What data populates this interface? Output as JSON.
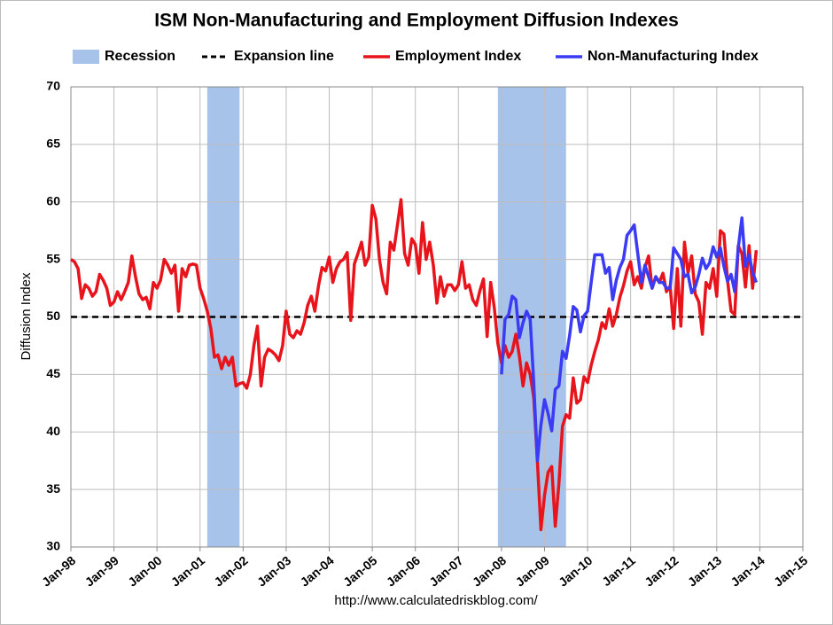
{
  "chart_data": {
    "type": "line",
    "title": "ISM Non-Manufacturing and Employment Diffusion Indexes",
    "ylabel": "Diffusion Index",
    "source": "http://www.calculatedriskblog.com/",
    "recession_label": "Recession",
    "recession_color": "#a8c3ea",
    "recessions": [
      {
        "start": "2001-03",
        "end": "2001-11"
      },
      {
        "start": "2007-12",
        "end": "2009-06"
      }
    ],
    "reference_line": {
      "name": "Expansion line",
      "value": 50,
      "color": "#000000"
    },
    "x": [
      "1998-01",
      "1998-02",
      "1998-03",
      "1998-04",
      "1998-05",
      "1998-06",
      "1998-07",
      "1998-08",
      "1998-09",
      "1998-10",
      "1998-11",
      "1998-12",
      "1999-01",
      "1999-02",
      "1999-03",
      "1999-04",
      "1999-05",
      "1999-06",
      "1999-07",
      "1999-08",
      "1999-09",
      "1999-10",
      "1999-11",
      "1999-12",
      "2000-01",
      "2000-02",
      "2000-03",
      "2000-04",
      "2000-05",
      "2000-06",
      "2000-07",
      "2000-08",
      "2000-09",
      "2000-10",
      "2000-11",
      "2000-12",
      "2001-01",
      "2001-02",
      "2001-03",
      "2001-04",
      "2001-05",
      "2001-06",
      "2001-07",
      "2001-08",
      "2001-09",
      "2001-10",
      "2001-11",
      "2001-12",
      "2002-01",
      "2002-02",
      "2002-03",
      "2002-04",
      "2002-05",
      "2002-06",
      "2002-07",
      "2002-08",
      "2002-09",
      "2002-10",
      "2002-11",
      "2002-12",
      "2003-01",
      "2003-02",
      "2003-03",
      "2003-04",
      "2003-05",
      "2003-06",
      "2003-07",
      "2003-08",
      "2003-09",
      "2003-10",
      "2003-11",
      "2003-12",
      "2004-01",
      "2004-02",
      "2004-03",
      "2004-04",
      "2004-05",
      "2004-06",
      "2004-07",
      "2004-08",
      "2004-09",
      "2004-10",
      "2004-11",
      "2004-12",
      "2005-01",
      "2005-02",
      "2005-03",
      "2005-04",
      "2005-05",
      "2005-06",
      "2005-07",
      "2005-08",
      "2005-09",
      "2005-10",
      "2005-11",
      "2005-12",
      "2006-01",
      "2006-02",
      "2006-03",
      "2006-04",
      "2006-05",
      "2006-06",
      "2006-07",
      "2006-08",
      "2006-09",
      "2006-10",
      "2006-11",
      "2006-12",
      "2007-01",
      "2007-02",
      "2007-03",
      "2007-04",
      "2007-05",
      "2007-06",
      "2007-07",
      "2007-08",
      "2007-09",
      "2007-10",
      "2007-11",
      "2007-12",
      "2008-01",
      "2008-02",
      "2008-03",
      "2008-04",
      "2008-05",
      "2008-06",
      "2008-07",
      "2008-08",
      "2008-09",
      "2008-10",
      "2008-11",
      "2008-12",
      "2009-01",
      "2009-02",
      "2009-03",
      "2009-04",
      "2009-05",
      "2009-06",
      "2009-07",
      "2009-08",
      "2009-09",
      "2009-10",
      "2009-11",
      "2009-12",
      "2010-01",
      "2010-02",
      "2010-03",
      "2010-04",
      "2010-05",
      "2010-06",
      "2010-07",
      "2010-08",
      "2010-09",
      "2010-10",
      "2010-11",
      "2010-12",
      "2011-01",
      "2011-02",
      "2011-03",
      "2011-04",
      "2011-05",
      "2011-06",
      "2011-07",
      "2011-08",
      "2011-09",
      "2011-10",
      "2011-11",
      "2011-12",
      "2012-01",
      "2012-02",
      "2012-03",
      "2012-04",
      "2012-05",
      "2012-06",
      "2012-07",
      "2012-08",
      "2012-09",
      "2012-10",
      "2012-11",
      "2012-12",
      "2013-01",
      "2013-02",
      "2013-03",
      "2013-04",
      "2013-05",
      "2013-06",
      "2013-07",
      "2013-08",
      "2013-09",
      "2013-10",
      "2013-11",
      "2013-12"
    ],
    "series": [
      {
        "name": "Employment Index",
        "color": "#e8141c",
        "values": [
          55,
          54.8,
          54.2,
          51.6,
          52.8,
          52.5,
          51.8,
          52.2,
          53.7,
          53.2,
          52.5,
          51,
          51.3,
          52.2,
          51.5,
          52.2,
          53,
          55.3,
          53.5,
          52,
          51.5,
          51.7,
          50.7,
          53,
          52.5,
          53.2,
          55,
          54.5,
          53.8,
          54.5,
          50.5,
          54.2,
          53.5,
          54.5,
          54.6,
          54.5,
          52.5,
          51.6,
          50.5,
          49,
          46.5,
          46.7,
          45.5,
          46.5,
          45.8,
          46.5,
          44,
          44.2,
          44.3,
          43.8,
          45,
          47.5,
          49.2,
          44,
          46.5,
          47.2,
          47,
          46.7,
          46.2,
          47.5,
          50.5,
          48.5,
          48.2,
          48.8,
          48.5,
          49.5,
          51,
          51.8,
          50.5,
          52.7,
          54.3,
          54,
          55.2,
          53,
          54.2,
          54.8,
          55,
          55.6,
          49.7,
          54.6,
          55.5,
          56.5,
          54.5,
          55.2,
          59.7,
          58.5,
          55,
          53,
          52,
          56.5,
          55.8,
          58,
          60.2,
          55.5,
          54.5,
          56.8,
          56.3,
          53.8,
          58.2,
          55,
          56.5,
          54.5,
          51.2,
          53.5,
          51.8,
          52.8,
          52.8,
          52.3,
          52.8,
          54.8,
          52.5,
          52.8,
          51.5,
          51,
          52.3,
          53.3,
          48.3,
          53,
          50.8,
          47.7,
          46,
          47.5,
          46.5,
          47,
          48.5,
          46.6,
          44,
          46,
          45,
          43,
          37.5,
          31.5,
          34.5,
          36.5,
          37,
          31.8,
          35.5,
          40.5,
          41.5,
          41.2,
          44.7,
          42.5,
          42.8,
          44.8,
          44.3,
          45.8,
          47,
          48,
          49.5,
          49,
          50.7,
          49.2,
          50.2,
          51.7,
          52.7,
          54,
          54.8,
          52.8,
          53.5,
          52.5,
          54.3,
          55.3,
          52.5,
          53.5,
          53,
          53.8,
          52.2,
          52.7,
          49,
          54.2,
          49.2,
          56.5,
          53.8,
          55.3,
          52,
          51.3,
          48.5,
          53,
          52.5,
          54.2,
          51.8,
          57.5,
          57.2,
          53.2,
          50.5,
          50.2,
          56.2,
          55.5,
          52.6,
          56.2,
          52.5,
          55.8
        ]
      },
      {
        "name": "Non-Manufacturing Index",
        "color": "#3b3bf5",
        "values": [
          null,
          null,
          null,
          null,
          null,
          null,
          null,
          null,
          null,
          null,
          null,
          null,
          null,
          null,
          null,
          null,
          null,
          null,
          null,
          null,
          null,
          null,
          null,
          null,
          null,
          null,
          null,
          null,
          null,
          null,
          null,
          null,
          null,
          null,
          null,
          null,
          null,
          null,
          null,
          null,
          null,
          null,
          null,
          null,
          null,
          null,
          null,
          null,
          null,
          null,
          null,
          null,
          null,
          null,
          null,
          null,
          null,
          null,
          null,
          null,
          null,
          null,
          null,
          null,
          null,
          null,
          null,
          null,
          null,
          null,
          null,
          null,
          null,
          null,
          null,
          null,
          null,
          null,
          null,
          null,
          null,
          null,
          null,
          null,
          null,
          null,
          null,
          null,
          null,
          null,
          null,
          null,
          null,
          null,
          null,
          null,
          null,
          null,
          null,
          null,
          null,
          null,
          null,
          null,
          null,
          null,
          null,
          null,
          null,
          null,
          null,
          null,
          null,
          null,
          null,
          null,
          null,
          null,
          null,
          null,
          45,
          49.8,
          50.2,
          51.8,
          51.5,
          48.2,
          49.5,
          50.5,
          49.8,
          44.3,
          37.5,
          40.6,
          42.8,
          41.6,
          40.1,
          43.7,
          44,
          47,
          46.4,
          48.4,
          50.9,
          50.6,
          48.7,
          50.1,
          50.5,
          53,
          55.4,
          55.4,
          55.4,
          53.8,
          54.3,
          51.5,
          53.2,
          54.3,
          55,
          57.1,
          57.5,
          58,
          55.5,
          53,
          54.5,
          53.5,
          52.5,
          53.5,
          53,
          53,
          52.5,
          52.5,
          56,
          55.5,
          55,
          53.5,
          53.7,
          52.1,
          52.6,
          53.7,
          55.1,
          54.2,
          54.7,
          56.1,
          55.2,
          56,
          54.4,
          53.1,
          53.7,
          52.2,
          56,
          58.6,
          54.4,
          55.4,
          53.9,
          53
        ]
      }
    ],
    "xlim": [
      "1998-01",
      "2015-01"
    ],
    "xticks": [
      {
        "value": "1998-01",
        "label": "Jan-98"
      },
      {
        "value": "1999-01",
        "label": "Jan-99"
      },
      {
        "value": "2000-01",
        "label": "Jan-00"
      },
      {
        "value": "2001-01",
        "label": "Jan-01"
      },
      {
        "value": "2002-01",
        "label": "Jan-02"
      },
      {
        "value": "2003-01",
        "label": "Jan-03"
      },
      {
        "value": "2004-01",
        "label": "Jan-04"
      },
      {
        "value": "2005-01",
        "label": "Jan-05"
      },
      {
        "value": "2006-01",
        "label": "Jan-06"
      },
      {
        "value": "2007-01",
        "label": "Jan-07"
      },
      {
        "value": "2008-01",
        "label": "Jan-08"
      },
      {
        "value": "2009-01",
        "label": "Jan-09"
      },
      {
        "value": "2010-01",
        "label": "Jan-10"
      },
      {
        "value": "2011-01",
        "label": "Jan-11"
      },
      {
        "value": "2012-01",
        "label": "Jan-12"
      },
      {
        "value": "2013-01",
        "label": "Jan-13"
      },
      {
        "value": "2014-01",
        "label": "Jan-14"
      },
      {
        "value": "2015-01",
        "label": "Jan-15"
      }
    ],
    "ylim": [
      30,
      70
    ],
    "yticks": [
      30,
      35,
      40,
      45,
      50,
      55,
      60,
      65,
      70
    ],
    "grid": true
  }
}
